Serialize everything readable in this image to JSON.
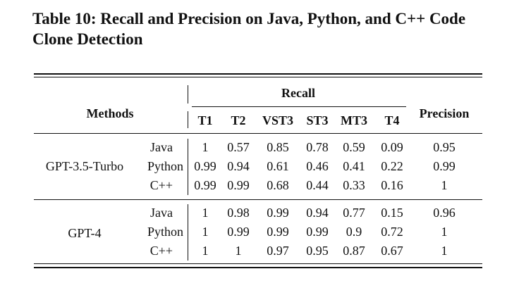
{
  "caption": {
    "line1": "Table 10: Recall and Precision on Java, Python, and C++ Code",
    "line2": "Clone Detection"
  },
  "table": {
    "methods_header": "Methods",
    "recall_header": "Recall",
    "precision_header": "Precision",
    "recall_columns": [
      "T1",
      "T2",
      "VST3",
      "ST3",
      "MT3",
      "T4"
    ],
    "groups": [
      {
        "method": "GPT-3.5-Turbo",
        "rows": [
          {
            "language": "Java",
            "recall": [
              "1",
              "0.57",
              "0.85",
              "0.78",
              "0.59",
              "0.09"
            ],
            "precision": "0.95"
          },
          {
            "language": "Python",
            "recall": [
              "0.99",
              "0.94",
              "0.61",
              "0.46",
              "0.41",
              "0.22"
            ],
            "precision": "0.99"
          },
          {
            "language": "C++",
            "recall": [
              "0.99",
              "0.99",
              "0.68",
              "0.44",
              "0.33",
              "0.16"
            ],
            "precision": "1"
          }
        ]
      },
      {
        "method": "GPT-4",
        "rows": [
          {
            "language": "Java",
            "recall": [
              "1",
              "0.98",
              "0.99",
              "0.94",
              "0.77",
              "0.15"
            ],
            "precision": "0.96"
          },
          {
            "language": "Python",
            "recall": [
              "1",
              "0.99",
              "0.99",
              "0.99",
              "0.9",
              "0.72"
            ],
            "precision": "1"
          },
          {
            "language": "C++",
            "recall": [
              "1",
              "1",
              "0.97",
              "0.95",
              "0.87",
              "0.67"
            ],
            "precision": "1"
          }
        ]
      }
    ]
  }
}
